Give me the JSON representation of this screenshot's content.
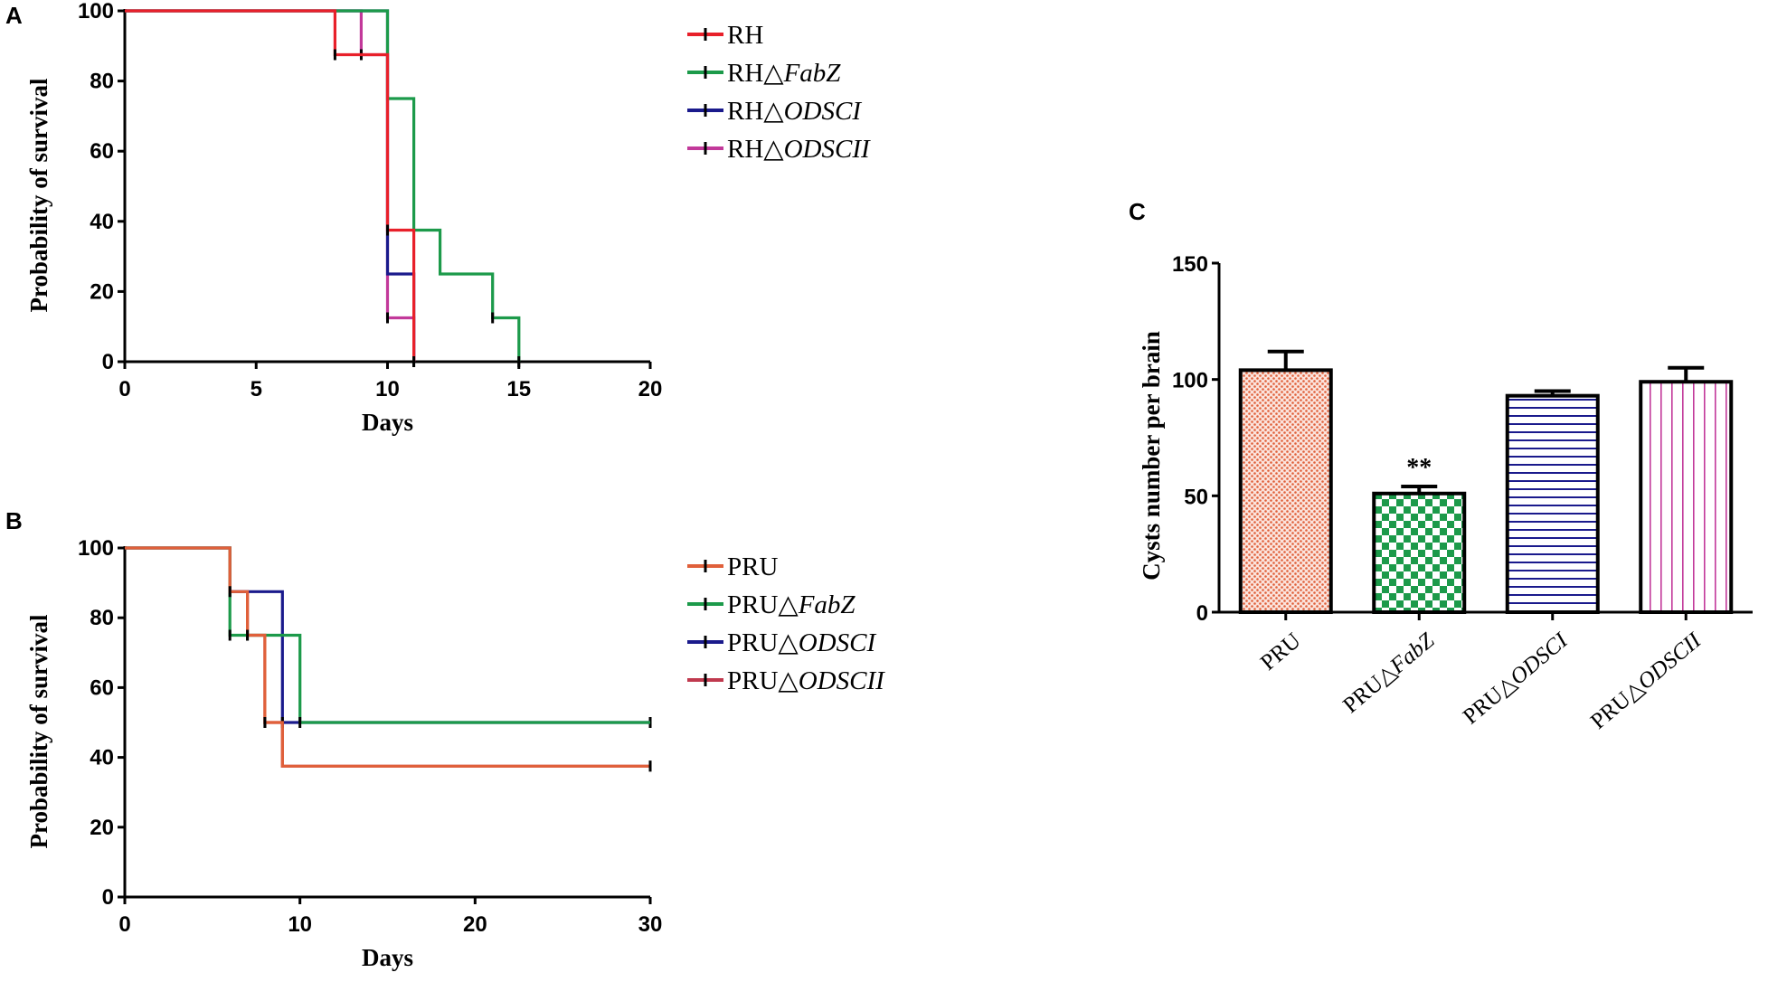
{
  "chart_data": [
    {
      "panel": "A",
      "type": "line",
      "subtype": "kaplan-meier-step",
      "xlabel": "Days",
      "ylabel": "Probability of survival",
      "xlim": [
        0,
        20
      ],
      "ylim": [
        0,
        100
      ],
      "xticks": [
        "0",
        "5",
        "10",
        "15",
        "20"
      ],
      "yticks": [
        "0",
        "20",
        "40",
        "60",
        "80",
        "100"
      ],
      "legend_position": "top-right",
      "series": [
        {
          "name": "RH",
          "prefix": "RH",
          "suffix": "",
          "color": "#e8202a",
          "points": [
            [
              0,
              100
            ],
            [
              8,
              100
            ],
            [
              8,
              87.5
            ],
            [
              10,
              87.5
            ],
            [
              10,
              37.5
            ],
            [
              11,
              37.5
            ],
            [
              11,
              0
            ]
          ],
          "censor": [
            [
              8,
              87.5
            ],
            [
              10,
              37.5
            ],
            [
              11,
              0
            ]
          ]
        },
        {
          "name": "RH△FabZ",
          "prefix": "RH△",
          "suffix": "FabZ",
          "color": "#1c9a4a",
          "points": [
            [
              0,
              100
            ],
            [
              10,
              100
            ],
            [
              10,
              87.5
            ],
            [
              10,
              75
            ],
            [
              11,
              75
            ],
            [
              11,
              37.5
            ],
            [
              12,
              37.5
            ],
            [
              12,
              25
            ],
            [
              14,
              25
            ],
            [
              14,
              12.5
            ],
            [
              15,
              12.5
            ],
            [
              15,
              0
            ]
          ],
          "censor": [
            [
              14,
              12.5
            ],
            [
              15,
              0
            ]
          ]
        },
        {
          "name": "RH△ODSCI",
          "prefix": "RH△",
          "suffix": "ODSCI",
          "color": "#1a1a8c",
          "points": [
            [
              0,
              100
            ],
            [
              10,
              100
            ],
            [
              10,
              25
            ],
            [
              11,
              25
            ],
            [
              11,
              0
            ]
          ],
          "censor": [
            [
              11,
              0
            ]
          ]
        },
        {
          "name": "RH△ODSCII",
          "prefix": "RH△",
          "suffix": "ODSCII",
          "color": "#c2399a",
          "points": [
            [
              0,
              100
            ],
            [
              9,
              100
            ],
            [
              9,
              87.5
            ],
            [
              10,
              87.5
            ],
            [
              10,
              12.5
            ],
            [
              11,
              12.5
            ],
            [
              11,
              0
            ]
          ],
          "censor": [
            [
              9,
              87.5
            ],
            [
              10,
              12.5
            ],
            [
              11,
              0
            ]
          ]
        }
      ]
    },
    {
      "panel": "B",
      "type": "line",
      "subtype": "kaplan-meier-step",
      "xlabel": "Days",
      "ylabel": "Probability of survival",
      "xlim": [
        0,
        30
      ],
      "ylim": [
        0,
        100
      ],
      "xticks": [
        "0",
        "10",
        "20",
        "30"
      ],
      "yticks": [
        "0",
        "20",
        "40",
        "60",
        "80",
        "100"
      ],
      "legend_position": "top-right",
      "series": [
        {
          "name": "PRU",
          "prefix": "PRU",
          "suffix": "",
          "color": "#e0603a",
          "points": [
            [
              0,
              100
            ],
            [
              6,
              100
            ],
            [
              6,
              87.5
            ],
            [
              7,
              87.5
            ],
            [
              7,
              75
            ],
            [
              8,
              75
            ],
            [
              8,
              50
            ],
            [
              9,
              50
            ],
            [
              9,
              37.5
            ],
            [
              30,
              37.5
            ]
          ],
          "censor": [
            [
              6,
              87.5
            ],
            [
              7,
              75
            ],
            [
              8,
              50
            ],
            [
              30,
              37.5
            ]
          ]
        },
        {
          "name": "PRU△FabZ",
          "prefix": "PRU△",
          "suffix": "FabZ",
          "color": "#1c9a4a",
          "points": [
            [
              0,
              100
            ],
            [
              6,
              100
            ],
            [
              6,
              75
            ],
            [
              8,
              75
            ],
            [
              8,
              75
            ],
            [
              10,
              75
            ],
            [
              10,
              50
            ],
            [
              30,
              50
            ]
          ],
          "censor": [
            [
              6,
              75
            ],
            [
              10,
              50
            ]
          ]
        },
        {
          "name": "PRU△ODSCI",
          "prefix": "PRU△",
          "suffix": "ODSCI",
          "color": "#1a1a8c",
          "points": [
            [
              0,
              100
            ],
            [
              6,
              100
            ],
            [
              6,
              87.5
            ],
            [
              9,
              87.5
            ],
            [
              9,
              50
            ],
            [
              30,
              50
            ]
          ],
          "censor": [
            [
              9,
              50
            ],
            [
              30,
              50
            ]
          ]
        },
        {
          "name": "PRU△ODSCII",
          "prefix": "PRU△",
          "suffix": "ODSCII",
          "color": "#c0394e",
          "points": [
            [
              0,
              100
            ],
            [
              6,
              100
            ],
            [
              6,
              87.5
            ],
            [
              7,
              87.5
            ],
            [
              7,
              75
            ],
            [
              8,
              75
            ],
            [
              8,
              50
            ],
            [
              9,
              50
            ],
            [
              9,
              37.5
            ],
            [
              30,
              37.5
            ]
          ],
          "censor": [
            [
              6,
              87.5
            ],
            [
              7,
              75
            ],
            [
              8,
              50
            ],
            [
              30,
              37.5
            ]
          ]
        }
      ]
    },
    {
      "panel": "C",
      "type": "bar",
      "ylabel": "Cysts number per brain",
      "xlabel": "",
      "ylim": [
        0,
        150
      ],
      "yticks": [
        "0",
        "50",
        "100",
        "150"
      ],
      "categories": [
        {
          "prefix": "PRU",
          "suffix": ""
        },
        {
          "prefix": "PRU△",
          "suffix": "FabZ"
        },
        {
          "prefix": "PRU△",
          "suffix": "ODSCI"
        },
        {
          "prefix": "PRU△",
          "suffix": "ODSCII"
        }
      ],
      "values": [
        104,
        51,
        93,
        99
      ],
      "errors": [
        8,
        3,
        2,
        6
      ],
      "colors": [
        "#e0603a",
        "#1c9a4a",
        "#1a1a8c",
        "#c2399a"
      ],
      "patterns": [
        "dots",
        "checker",
        "hlines",
        "vlines"
      ],
      "annotations": [
        "",
        "**",
        "",
        ""
      ]
    }
  ],
  "labels": {
    "panel_a": "A",
    "panel_b": "B",
    "panel_c": "C"
  }
}
